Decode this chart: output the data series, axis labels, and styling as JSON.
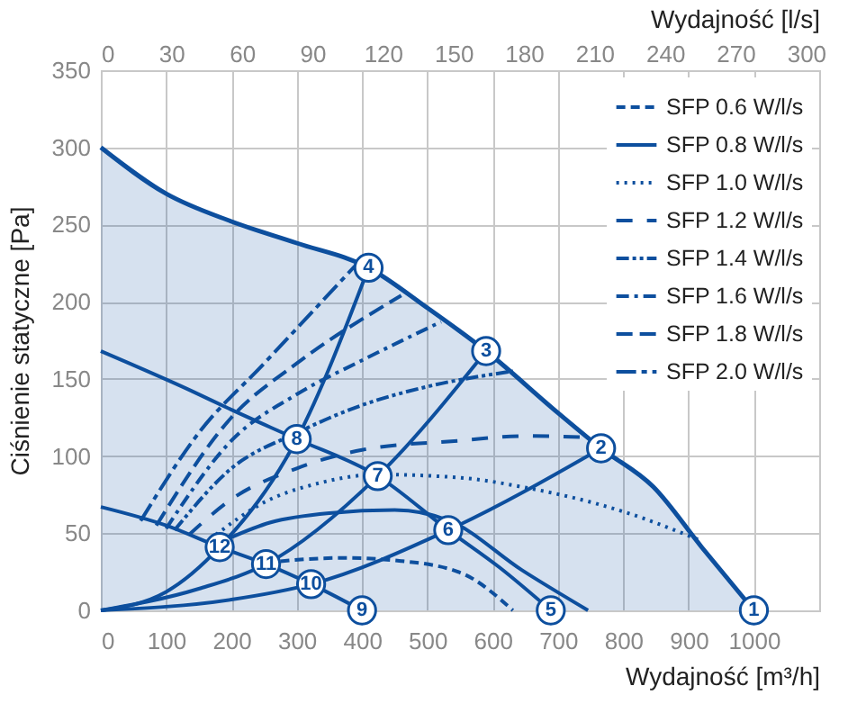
{
  "chart_data": {
    "type": "line",
    "xlabel": "Wydajność [m³/h]",
    "ylabel": "Ciśnienie statyczne [Pa]",
    "x2label": "Wydajność [l/s]",
    "xlim": [
      0,
      1100
    ],
    "xticks": [
      0,
      100,
      200,
      300,
      400,
      500,
      600,
      700,
      800,
      900,
      1000
    ],
    "x2lim": [
      0,
      305.6
    ],
    "x2ticks": [
      0,
      30,
      60,
      90,
      120,
      150,
      180,
      210,
      240,
      270,
      300
    ],
    "ylim": [
      0,
      350
    ],
    "yticks": [
      0,
      50,
      100,
      150,
      200,
      250,
      300,
      350
    ],
    "grid": true,
    "legend": "top right",
    "series": [
      {
        "type": "area",
        "color": "#0d4f9e",
        "line_style": "solid",
        "x": [
          0,
          100,
          200,
          300,
          410,
          500,
          590,
          700,
          766,
          846,
          920,
          1000
        ],
        "values": [
          300,
          270,
          252,
          238,
          222,
          196,
          168,
          128,
          105,
          80,
          41,
          0
        ]
      },
      {
        "color": "#0d4f9e",
        "line_style": "solid",
        "x": [
          0,
          140,
          200,
          300,
          424,
          532,
          610,
          689
        ],
        "values": [
          168,
          142,
          130,
          111,
          87,
          52,
          28,
          0
        ]
      },
      {
        "color": "#0d4f9e",
        "line_style": "solid",
        "x": [
          0,
          100,
          182,
          253,
          322,
          400
        ],
        "values": [
          67,
          55,
          41,
          30,
          17,
          0
        ]
      },
      {
        "color": "#0d4f9e",
        "line_style": "solid",
        "x": [
          0,
          100,
          182,
          300,
          410
        ],
        "values": [
          0,
          12,
          41,
          111,
          222
        ]
      },
      {
        "color": "#0d4f9e",
        "line_style": "solid",
        "x": [
          0,
          150,
          253,
          424,
          590
        ],
        "values": [
          0,
          14,
          30,
          87,
          168
        ]
      },
      {
        "color": "#0d4f9e",
        "line_style": "solid",
        "x": [
          0,
          200,
          322,
          532,
          766
        ],
        "values": [
          0,
          7,
          17,
          52,
          105
        ]
      },
      {
        "name": "SFP 0.6 W/l/s",
        "color": "#0d4f9e",
        "line_style": "dashed",
        "x": [
          253,
          369,
          460,
          553,
          631
        ],
        "values": [
          31,
          34,
          32,
          24,
          0
        ]
      },
      {
        "name": "SFP 0.8 W/l/s",
        "color": "#0d4f9e",
        "line_style": "solid",
        "x": [
          182,
          260,
          350,
          450,
          534,
          645,
          746
        ],
        "values": [
          44,
          57,
          63,
          65,
          58,
          26,
          0
        ]
      },
      {
        "name": "SFP 1.0 W/l/s",
        "color": "#0d4f9e",
        "line_style": "dotted",
        "x": [
          176,
          250,
          330,
          424,
          550,
          645,
          800,
          920
        ],
        "values": [
          49,
          70,
          82,
          88,
          86,
          80,
          64,
          45
        ]
      },
      {
        "name": "SFP 1.2 W/l/s",
        "color": "#0d4f9e",
        "line_style": "loosedash",
        "x": [
          135,
          200,
          300,
          400,
          550,
          650,
          755
        ],
        "values": [
          49,
          72,
          92,
          104,
          110,
          113,
          112
        ]
      },
      {
        "name": "SFP 1.4 W/l/s",
        "color": "#0d4f9e",
        "line_style": "dashdotdot",
        "x": [
          113,
          200,
          300,
          400,
          500,
          631
        ],
        "values": [
          52,
          92,
          115,
          133,
          145,
          155
        ]
      },
      {
        "name": "SFP 1.6 W/l/s",
        "color": "#0d4f9e",
        "line_style": "dashdot",
        "x": [
          100,
          200,
          300,
          400,
          521
        ],
        "values": [
          53,
          110,
          140,
          162,
          187
        ]
      },
      {
        "name": "SFP 1.8 W/l/s",
        "color": "#0d4f9e",
        "line_style": "longdash",
        "x": [
          85,
          200,
          300,
          460
        ],
        "values": [
          55,
          125,
          160,
          204
        ]
      },
      {
        "name": "SFP 2.0 W/l/s",
        "color": "#0d4f9e",
        "line_style": "longdashdot",
        "x": [
          61,
          150,
          250,
          391
        ],
        "values": [
          58,
          115,
          160,
          224
        ]
      }
    ],
    "annotations": [
      {
        "text": "1",
        "x": 1000,
        "y": 0
      },
      {
        "text": "2",
        "x": 766,
        "y": 105
      },
      {
        "text": "3",
        "x": 590,
        "y": 168
      },
      {
        "text": "4",
        "x": 410,
        "y": 222
      },
      {
        "text": "5",
        "x": 689,
        "y": 0
      },
      {
        "text": "6",
        "x": 532,
        "y": 52
      },
      {
        "text": "7",
        "x": 424,
        "y": 87
      },
      {
        "text": "8",
        "x": 300,
        "y": 111
      },
      {
        "text": "9",
        "x": 400,
        "y": 0
      },
      {
        "text": "10",
        "x": 322,
        "y": 17
      },
      {
        "text": "11",
        "x": 253,
        "y": 30
      },
      {
        "text": "12",
        "x": 182,
        "y": 41
      }
    ]
  }
}
